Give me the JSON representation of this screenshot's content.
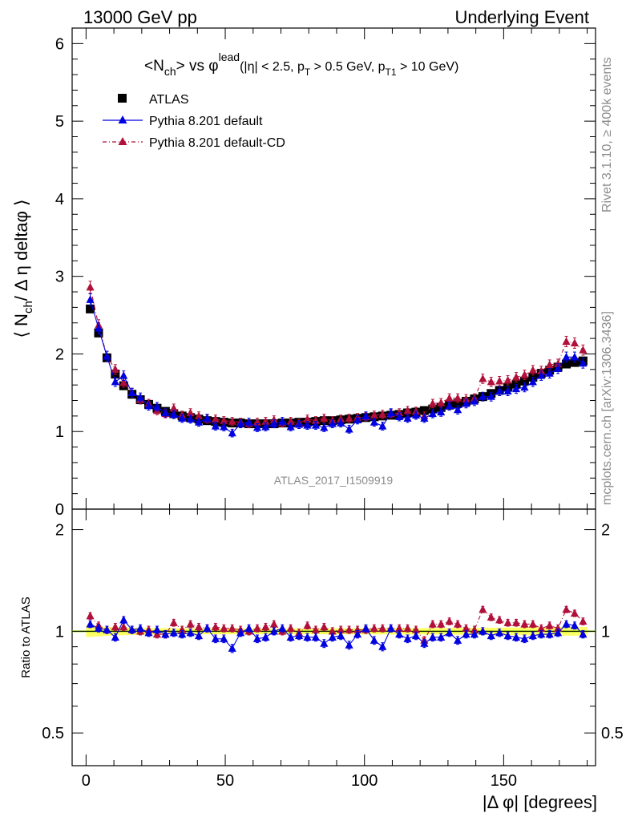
{
  "header": {
    "left": "13000 GeV pp",
    "right": "Underlying Event"
  },
  "plot_title": {
    "main": "<N",
    "main_sub": "ch",
    "mid": "> vs φ",
    "mid_sup": "lead",
    "cuts": "(|η| < 2.5, p",
    "cuts_sub1": "T",
    "cuts_mid": " > 0.5 GeV, p",
    "cuts_sub2": "T1",
    "cuts_end": " > 10 GeV)"
  },
  "side_labels": {
    "rivet": "Rivet 3.1.10, ≥ 400k events",
    "mcplots": "mcplots.cern.ch [arXiv:1306.3436]"
  },
  "analysis_id": "ATLAS_2017_I1509919",
  "colors": {
    "atlas": "#000000",
    "pythia_default": "#0000e0",
    "pythia_cd": "#b0103a",
    "band": "#ffff66",
    "band_edge": "#8fd800"
  },
  "chart_data": [
    {
      "type": "scatter",
      "panel": "main",
      "ylabel": "⟨ N",
      "ylabel_sub": "ch",
      "ylabel_rest": "/ Δ η deltaφ ⟩",
      "xlim": [
        -5,
        183
      ],
      "ylim": [
        0,
        6.2
      ],
      "yticks": [
        "0",
        "1",
        "2",
        "3",
        "4",
        "5",
        "6"
      ],
      "legend": [
        "ATLAS",
        "Pythia 8.201 default",
        "Pythia 8.201 default-CD"
      ],
      "legend_position": "top-left",
      "x": [
        1.5,
        4.5,
        7.5,
        10.5,
        13.5,
        16.5,
        19.5,
        22.5,
        25.5,
        28.5,
        31.5,
        34.5,
        37.5,
        40.5,
        43.5,
        46.5,
        49.5,
        52.5,
        55.5,
        58.5,
        61.5,
        64.5,
        67.5,
        70.5,
        73.5,
        76.5,
        79.5,
        82.5,
        85.5,
        88.5,
        91.5,
        94.5,
        97.5,
        100.5,
        103.5,
        106.5,
        109.5,
        112.5,
        115.5,
        118.5,
        121.5,
        124.5,
        127.5,
        130.5,
        133.5,
        136.5,
        139.5,
        142.5,
        145.5,
        148.5,
        151.5,
        154.5,
        157.5,
        160.5,
        163.5,
        166.5,
        169.5,
        172.5,
        175.5,
        178.5
      ],
      "series": [
        {
          "name": "ATLAS",
          "values": [
            2.58,
            2.27,
            1.95,
            1.74,
            1.59,
            1.48,
            1.41,
            1.35,
            1.3,
            1.26,
            1.23,
            1.2,
            1.18,
            1.16,
            1.14,
            1.13,
            1.12,
            1.11,
            1.11,
            1.1,
            1.1,
            1.1,
            1.1,
            1.11,
            1.11,
            1.12,
            1.12,
            1.13,
            1.14,
            1.14,
            1.15,
            1.16,
            1.17,
            1.18,
            1.19,
            1.2,
            1.21,
            1.22,
            1.24,
            1.25,
            1.27,
            1.29,
            1.31,
            1.34,
            1.36,
            1.39,
            1.42,
            1.45,
            1.49,
            1.53,
            1.57,
            1.61,
            1.65,
            1.7,
            1.75,
            1.79,
            1.83,
            1.87,
            1.89,
            1.91
          ]
        },
        {
          "name": "Pythia 8.201 default",
          "values": [
            2.7,
            2.33,
            1.97,
            1.64,
            1.72,
            1.5,
            1.44,
            1.33,
            1.32,
            1.24,
            1.22,
            1.17,
            1.16,
            1.12,
            1.17,
            1.07,
            1.06,
            0.98,
            1.1,
            1.12,
            1.05,
            1.06,
            1.1,
            1.13,
            1.06,
            1.09,
            1.08,
            1.08,
            1.05,
            1.1,
            1.11,
            1.03,
            1.15,
            1.2,
            1.12,
            1.07,
            1.24,
            1.19,
            1.17,
            1.21,
            1.17,
            1.23,
            1.25,
            1.33,
            1.28,
            1.36,
            1.39,
            1.45,
            1.45,
            1.52,
            1.52,
            1.55,
            1.57,
            1.64,
            1.72,
            1.75,
            1.81,
            1.96,
            1.96,
            1.88
          ]
        },
        {
          "name": "Pythia 8.201 default-CD",
          "values": [
            2.86,
            2.37,
            1.97,
            1.8,
            1.63,
            1.5,
            1.41,
            1.36,
            1.27,
            1.23,
            1.3,
            1.21,
            1.24,
            1.2,
            1.16,
            1.16,
            1.14,
            1.13,
            1.12,
            1.1,
            1.12,
            1.13,
            1.15,
            1.11,
            1.13,
            1.11,
            1.16,
            1.14,
            1.17,
            1.14,
            1.16,
            1.17,
            1.18,
            1.19,
            1.21,
            1.22,
            1.23,
            1.24,
            1.27,
            1.26,
            1.2,
            1.36,
            1.37,
            1.43,
            1.43,
            1.42,
            1.43,
            1.68,
            1.64,
            1.65,
            1.66,
            1.7,
            1.73,
            1.79,
            1.78,
            1.86,
            1.87,
            2.16,
            2.14,
            2.05
          ]
        }
      ]
    },
    {
      "type": "scatter",
      "panel": "ratio",
      "ylabel": "Ratio to ATLAS",
      "xlabel": "|Δ φ| [degrees]",
      "xlim": [
        -5,
        183
      ],
      "ylim": [
        0.4,
        2.3
      ],
      "yticks": [
        "0.5",
        "1",
        "2"
      ],
      "xticks": [
        "0",
        "50",
        "100",
        "150"
      ],
      "series": [
        {
          "name": "Pythia 8.201 default",
          "values": [
            1.05,
            1.02,
            1.01,
            0.96,
            1.08,
            1.01,
            1.02,
            0.99,
            1.01,
            0.98,
            0.99,
            0.98,
            0.99,
            0.97,
            1.02,
            0.95,
            0.95,
            0.89,
            0.99,
            1.02,
            0.95,
            0.96,
            1.0,
            1.02,
            0.96,
            0.97,
            0.96,
            0.96,
            0.92,
            0.96,
            0.97,
            0.91,
            0.98,
            1.02,
            0.94,
            0.9,
            1.02,
            0.98,
            0.95,
            0.97,
            0.92,
            0.96,
            0.96,
            0.99,
            0.94,
            0.98,
            0.98,
            1.0,
            0.97,
            0.99,
            0.97,
            0.96,
            0.95,
            0.97,
            0.98,
            0.98,
            0.99,
            1.05,
            1.04,
            0.98
          ]
        },
        {
          "name": "Pythia 8.201 default-CD",
          "values": [
            1.11,
            1.04,
            1.01,
            1.03,
            1.03,
            1.01,
            1.0,
            1.01,
            0.98,
            0.98,
            1.06,
            1.01,
            1.05,
            1.03,
            1.02,
            1.03,
            1.02,
            1.02,
            1.01,
            1.0,
            1.02,
            1.03,
            1.05,
            1.0,
            1.02,
            0.99,
            1.04,
            1.01,
            1.03,
            1.0,
            1.01,
            1.01,
            1.01,
            1.01,
            1.02,
            1.02,
            1.02,
            1.02,
            1.02,
            1.01,
            0.94,
            1.05,
            1.05,
            1.07,
            1.05,
            1.02,
            1.01,
            1.16,
            1.1,
            1.08,
            1.06,
            1.06,
            1.05,
            1.05,
            1.02,
            1.04,
            1.02,
            1.16,
            1.13,
            1.07
          ]
        }
      ]
    }
  ]
}
